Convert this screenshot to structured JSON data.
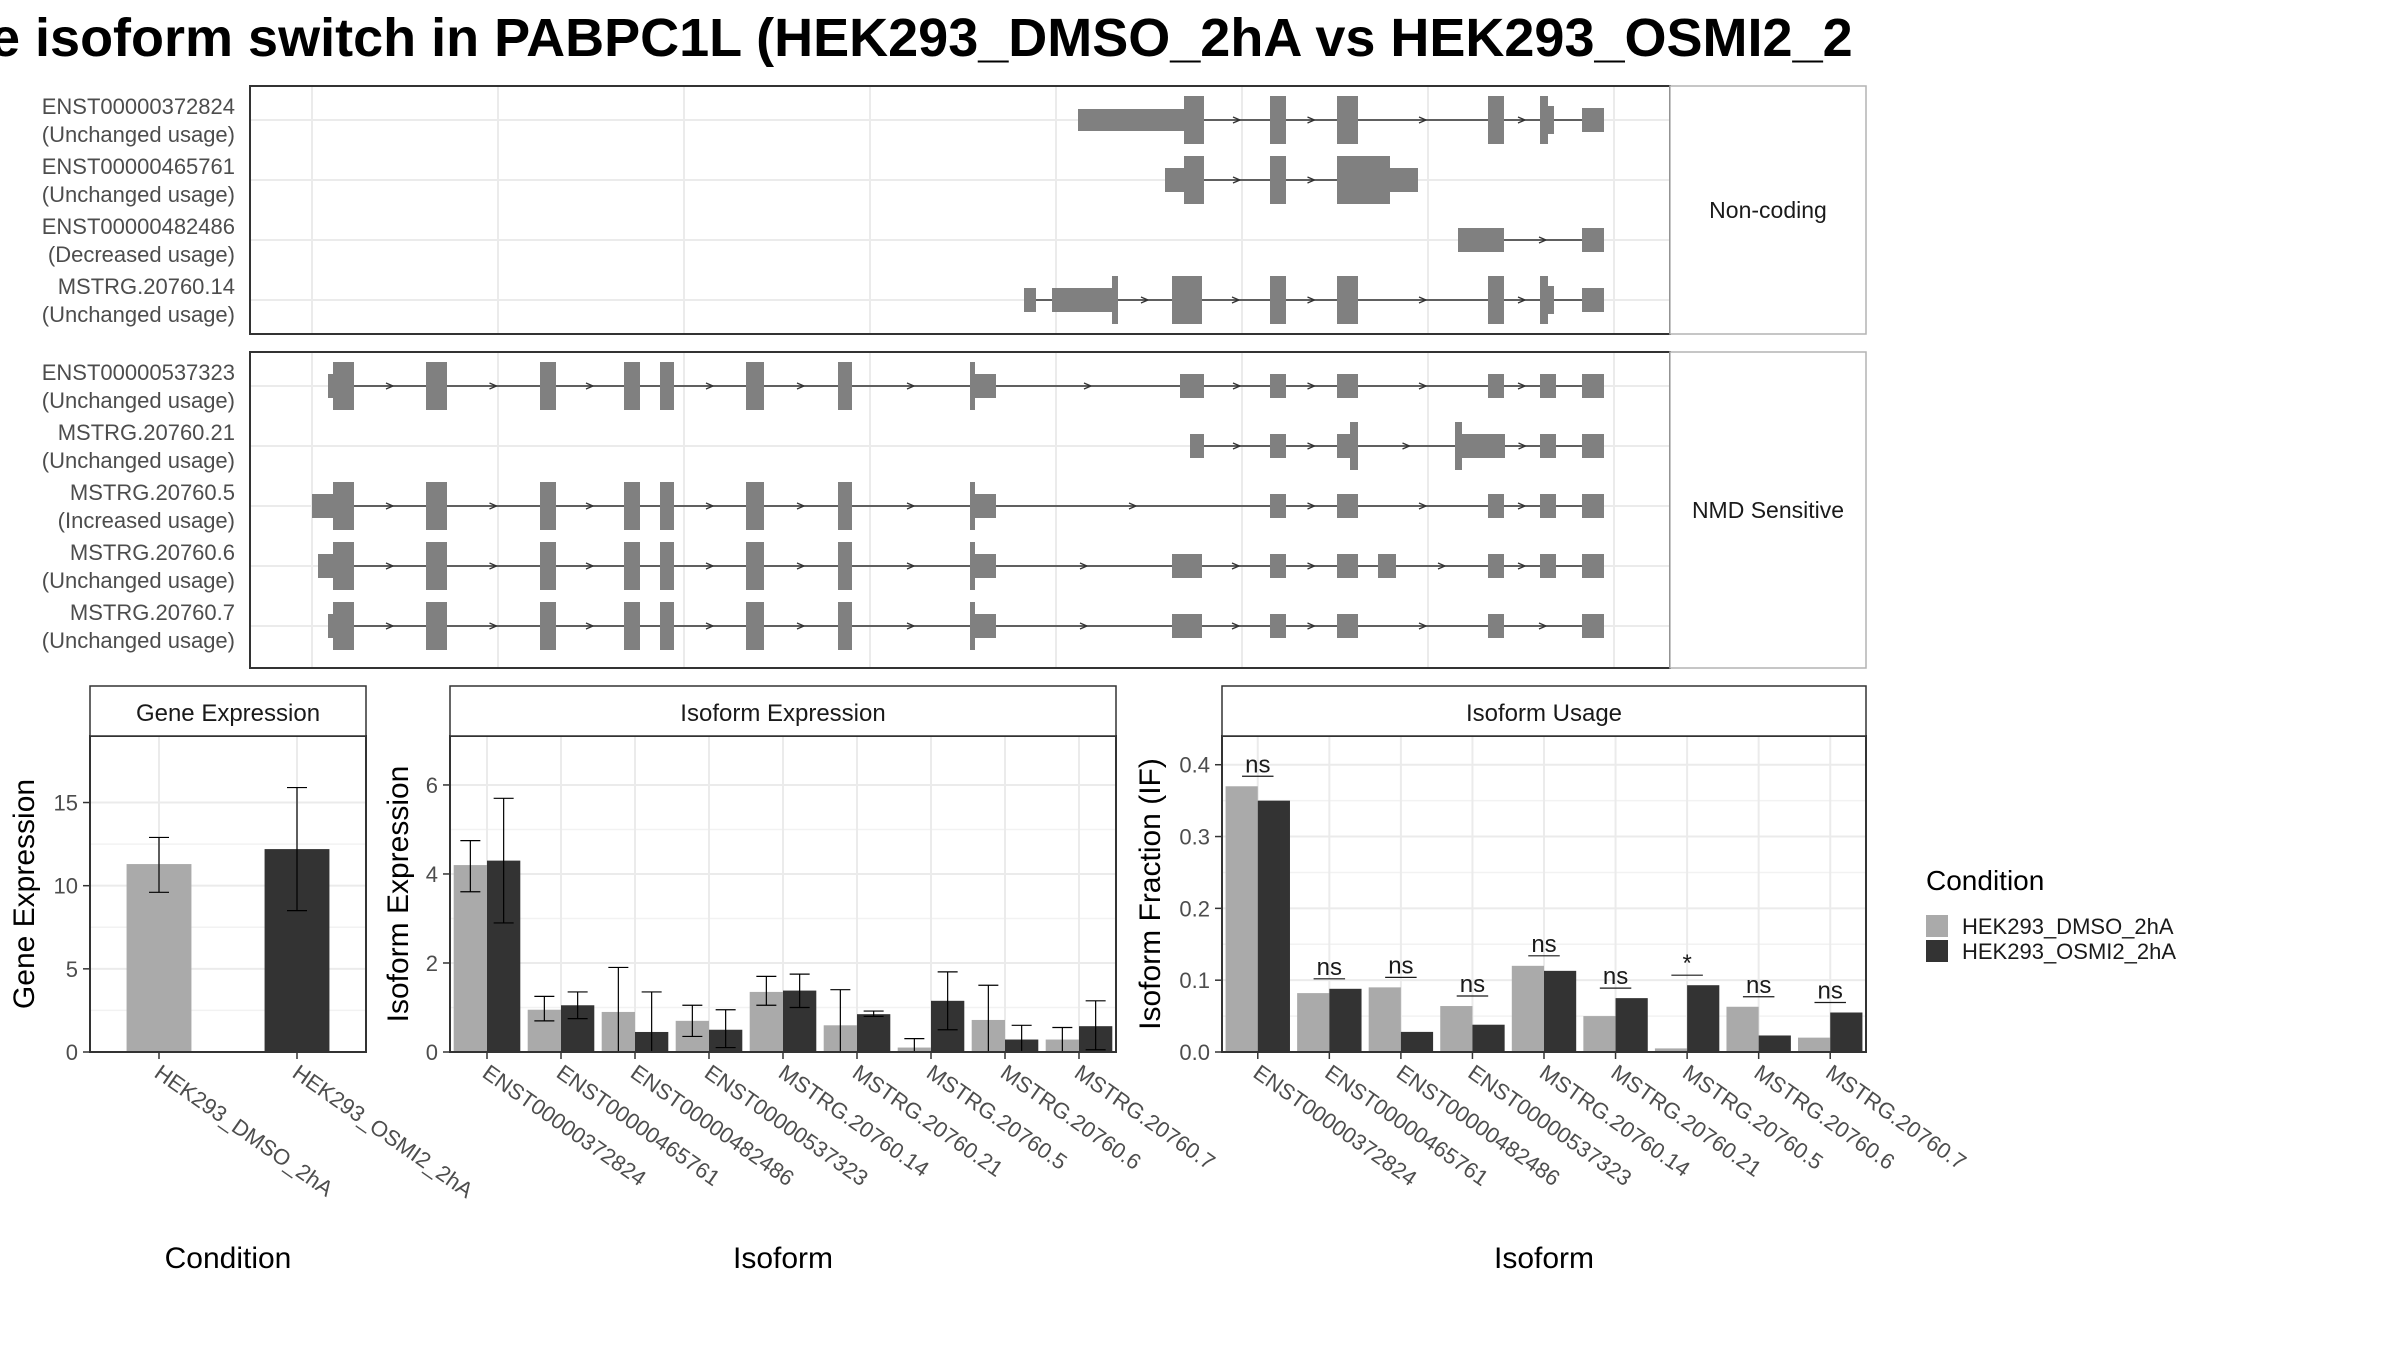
{
  "title": "e isoform switch in PABPC1L (HEK293_DMSO_2hA vs HEK293_OSMI2_2",
  "colors": {
    "dmso": "#aaaaaa",
    "osmi": "#333333",
    "isoform": "#808080",
    "grid": "#ebebeb",
    "frame": "#333333"
  },
  "structure_panels": [
    {
      "label": "Non-coding",
      "isoforms": [
        {
          "name": "ENST00000372824",
          "status": "(Unchanged usage)"
        },
        {
          "name": "ENST00000465761",
          "status": "(Unchanged usage)"
        },
        {
          "name": "ENST00000482486",
          "status": "(Decreased usage)"
        },
        {
          "name": "MSTRG.20760.14",
          "status": "(Unchanged usage)"
        }
      ]
    },
    {
      "label": "NMD Sensitive",
      "isoforms": [
        {
          "name": "ENST00000537323",
          "status": "(Unchanged usage)"
        },
        {
          "name": "MSTRG.20760.21",
          "status": "(Unchanged usage)"
        },
        {
          "name": "MSTRG.20760.5",
          "status": "(Increased usage)"
        },
        {
          "name": "MSTRG.20760.6",
          "status": "(Unchanged usage)"
        },
        {
          "name": "MSTRG.20760.7",
          "status": "(Unchanged usage)"
        }
      ]
    }
  ],
  "chart_data": [
    {
      "type": "bar",
      "title": "Gene Expression",
      "xlabel": "Condition",
      "ylabel": "Gene Expression",
      "ylim": [
        0,
        19
      ],
      "yticks": [
        0,
        5,
        10,
        15
      ],
      "categories": [
        "HEK293_DMSO_2hA",
        "HEK293_OSMI2_2hA"
      ],
      "series": [
        {
          "name": "HEK293_DMSO_2hA",
          "values": [
            11.3,
            null
          ],
          "err_low": [
            9.6,
            null
          ],
          "err_high": [
            12.9,
            null
          ]
        },
        {
          "name": "HEK293_OSMI2_2hA",
          "values": [
            null,
            12.2
          ],
          "err_low": [
            null,
            8.5
          ],
          "err_high": [
            null,
            15.9
          ]
        }
      ]
    },
    {
      "type": "bar",
      "title": "Isoform Expression",
      "xlabel": "Isoform",
      "ylabel": "Isoform Expression",
      "ylim": [
        0,
        7.1
      ],
      "yticks": [
        0,
        2,
        4,
        6
      ],
      "categories": [
        "ENST00000372824",
        "ENST00000465761",
        "ENST00000482486",
        "ENST00000537323",
        "MSTRG.20760.14",
        "MSTRG.20760.21",
        "MSTRG.20760.5",
        "MSTRG.20760.6",
        "MSTRG.20760.7"
      ],
      "series": [
        {
          "name": "HEK293_DMSO_2hA",
          "values": [
            4.2,
            0.95,
            0.9,
            0.7,
            1.35,
            0.6,
            0.1,
            0.72,
            0.28
          ],
          "err_low": [
            3.6,
            0.7,
            0.0,
            0.35,
            1.05,
            0.0,
            0.0,
            0.0,
            0.0
          ],
          "err_high": [
            4.75,
            1.25,
            1.9,
            1.05,
            1.7,
            1.4,
            0.3,
            1.5,
            0.55
          ]
        },
        {
          "name": "HEK293_OSMI2_2hA",
          "values": [
            4.3,
            1.05,
            0.45,
            0.5,
            1.38,
            0.85,
            1.15,
            0.28,
            0.58
          ],
          "err_low": [
            2.9,
            0.75,
            0.0,
            0.1,
            1.0,
            0.8,
            0.5,
            0.0,
            0.05
          ],
          "err_high": [
            5.7,
            1.35,
            1.35,
            0.95,
            1.75,
            0.92,
            1.8,
            0.6,
            1.15
          ]
        }
      ]
    },
    {
      "type": "bar",
      "title": "Isoform Usage",
      "xlabel": "Isoform",
      "ylabel": "Isoform Fraction (IF)",
      "ylim": [
        0,
        0.44
      ],
      "yticks": [
        0.0,
        0.1,
        0.2,
        0.3,
        0.4
      ],
      "ytick_labels": [
        "0.0",
        "0.1",
        "0.2",
        "0.3",
        "0.4"
      ],
      "categories": [
        "ENST00000372824",
        "ENST00000465761",
        "ENST00000482486",
        "ENST00000537323",
        "MSTRG.20760.14",
        "MSTRG.20760.21",
        "MSTRG.20760.5",
        "MSTRG.20760.6",
        "MSTRG.20760.7"
      ],
      "series": [
        {
          "name": "HEK293_DMSO_2hA",
          "values": [
            0.37,
            0.082,
            0.09,
            0.064,
            0.12,
            0.05,
            0.005,
            0.063,
            0.02
          ]
        },
        {
          "name": "HEK293_OSMI2_2hA",
          "values": [
            0.35,
            0.088,
            0.028,
            0.038,
            0.113,
            0.075,
            0.093,
            0.023,
            0.055
          ]
        }
      ],
      "significance": [
        "ns",
        "ns",
        "ns",
        "ns",
        "ns",
        "ns",
        "*",
        "ns",
        "ns"
      ]
    }
  ],
  "legend": {
    "title": "Condition",
    "items": [
      {
        "label": "HEK293_DMSO_2hA",
        "color": "#aaaaaa"
      },
      {
        "label": "HEK293_OSMI2_2hA",
        "color": "#333333"
      }
    ],
    "position": "right"
  }
}
